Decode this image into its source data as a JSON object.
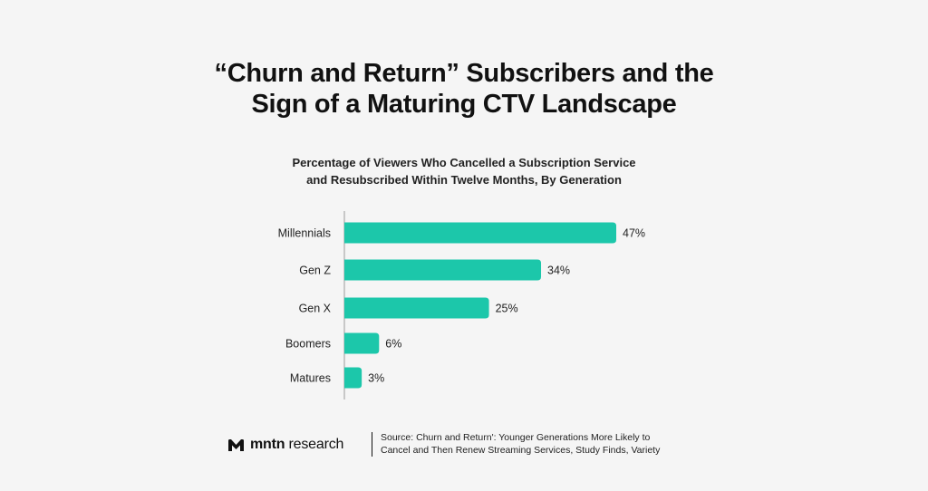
{
  "header": {
    "title_line1": "“Churn and Return” Subscribers and the",
    "title_line2": "Sign of a Maturing CTV Landscape"
  },
  "chart_data": {
    "type": "bar",
    "orientation": "horizontal",
    "title": "Percentage of Viewers Who Cancelled a Subscription Service and Resubscribed Within Twelve Months, By Generation",
    "title_line1": "Percentage of Viewers Who Cancelled a Subscription Service",
    "title_line2": "and Resubscribed Within Twelve Months, By Generation",
    "categories": [
      "Millennials",
      "Gen Z",
      "Gen X",
      "Boomers",
      "Matures"
    ],
    "values": [
      47,
      34,
      25,
      6,
      3
    ],
    "value_labels": [
      "47%",
      "34%",
      "25%",
      "6%",
      "3%"
    ],
    "xlim": [
      0,
      47
    ],
    "bar_color": "#1cc7aa",
    "grid": false,
    "legend": "none"
  },
  "footer": {
    "brand_bold": "mntn",
    "brand_rest": " research",
    "source_line1": "Source: Churn and Return': Younger Generations More Likely to",
    "source_line2": "Cancel and Then Renew Streaming Services, Study Finds, Variety"
  },
  "icons": {
    "brand_logo": "mntn-m-icon"
  }
}
